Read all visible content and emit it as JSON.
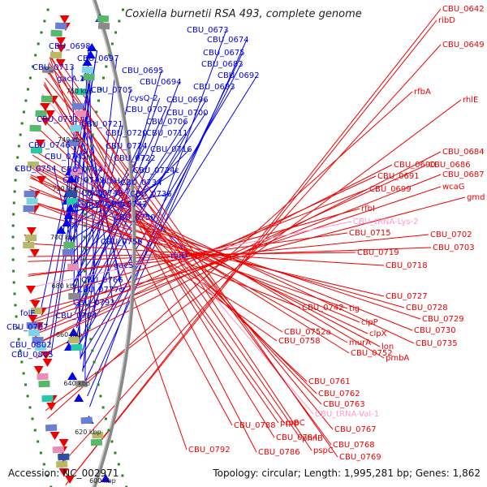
{
  "title": "Coxiella burnetii RSA 493, complete genome",
  "footer": {
    "accession": "Accession: NC_002971",
    "summary": "Topology: circular; Length: 1,995,281 bp; Genes: 1,862"
  },
  "colors": {
    "forward_strand": "#ee0000",
    "reverse_strand": "#0000ee",
    "rna": "#ff99cc",
    "backbone": "#888888",
    "tick": "#228822"
  },
  "kbp_ticks": [
    "600 kbp",
    "620 kbp",
    "640 kbp",
    "660 kbp",
    "680 kbp",
    "700 kbp",
    "720 kbp",
    "740 kbp",
    "760 kbp"
  ],
  "left_labels": [
    "CBU_0673",
    "CBU_0674",
    "CBU_0675",
    "CBU_0683",
    "CBU_0692",
    "CBU_0693",
    "CBU_0698",
    "CBU_0697",
    "CBU_0695",
    "CBU_0694",
    "CBU_0696",
    "CBU_0713",
    "gacA.1",
    "CBU_0705",
    "cysQ-2",
    "CBU_0707",
    "CBU_0700",
    "CBU_0706",
    "CBU_0731",
    "CBU_0721",
    "CBU_0720",
    "CBU_0711",
    "CBU_0746",
    "CBU_0724",
    "CBU_0716",
    "CBU_0745",
    "CBU_0722",
    "CBU_0754",
    "CBU_0744",
    "CBU_0724c",
    "CBU_0749",
    "ptsH",
    "CBU_0734",
    "CBU_0748",
    "CBU_0736",
    "degP.2",
    "CBU_0747",
    "CBU_0750",
    "CBU_0756",
    "rluD",
    "gacS",
    "CBU_0766",
    "CBU_0777c",
    "CBU_0793",
    "folE",
    "CBU_0794",
    "CBU_0797",
    "CBU_0802",
    "CBU_0805"
  ],
  "right_labels": [
    "CBU_0642",
    "ribD",
    "CBU_0649",
    "rfbA",
    "rhlE",
    "CBU_0684",
    "CBU_0690",
    "CBU_0686",
    "CBU_0691",
    "CBU_0687",
    "wcaG",
    "CBU_0699",
    "gmd",
    "rfbI",
    "CBU_tRNA-Lys-2",
    "CBU_0715",
    "CBU_0702",
    "CBU_0703",
    "CBU_0719",
    "CBU_0718",
    "CBU_0727",
    "CBU_0742",
    "tig",
    "CBU_0728",
    "clpP",
    "CBU_0729",
    "CBU_0752a",
    "clpX",
    "CBU_0730",
    "CBU_0758",
    "murA",
    "lon",
    "CBU_0735",
    "CBU_0752",
    "pmbA",
    "CBU_0761",
    "CBU_0762",
    "CBU_0763",
    "prpB",
    "CBU_tRNA-Val-1",
    "CBU_0788",
    "prpC",
    "CBU_0767",
    "CBU_0784",
    "phnB",
    "CBU_0768",
    "CBU_0786",
    "pspC",
    "CBU_0769",
    "CBU_0792"
  ],
  "pink_labels": [
    "CBU_tRNA-Lys-2",
    "CBU_tRNA-Val-1"
  ]
}
